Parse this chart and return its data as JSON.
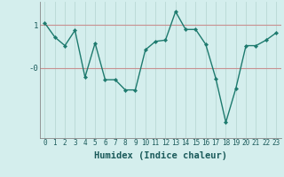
{
  "x": [
    0,
    1,
    2,
    3,
    4,
    5,
    6,
    7,
    8,
    9,
    10,
    11,
    12,
    13,
    14,
    15,
    16,
    17,
    18,
    19,
    20,
    21,
    22,
    23
  ],
  "y": [
    1.05,
    0.72,
    0.52,
    0.88,
    -0.22,
    0.58,
    -0.28,
    -0.28,
    -0.52,
    -0.52,
    0.42,
    0.62,
    0.65,
    1.32,
    0.9,
    0.9,
    0.55,
    -0.25,
    -1.28,
    -0.48,
    0.52,
    0.52,
    0.65,
    0.82
  ],
  "line_color": "#1d7a6e",
  "marker": "D",
  "marker_size": 2.2,
  "bg_color": "#d4eeed",
  "grid_color": "#b8d8d5",
  "hline_color": "#c89090",
  "xlabel": "Humidex (Indice chaleur)",
  "xlabel_fontsize": 7.5,
  "xlim": [
    -0.5,
    23.5
  ],
  "ylim": [
    -1.65,
    1.55
  ],
  "y1_pos": 1.0,
  "y0_pos": 0.0,
  "tick_fontsize": 5.5,
  "ytick_fontsize": 6.5
}
